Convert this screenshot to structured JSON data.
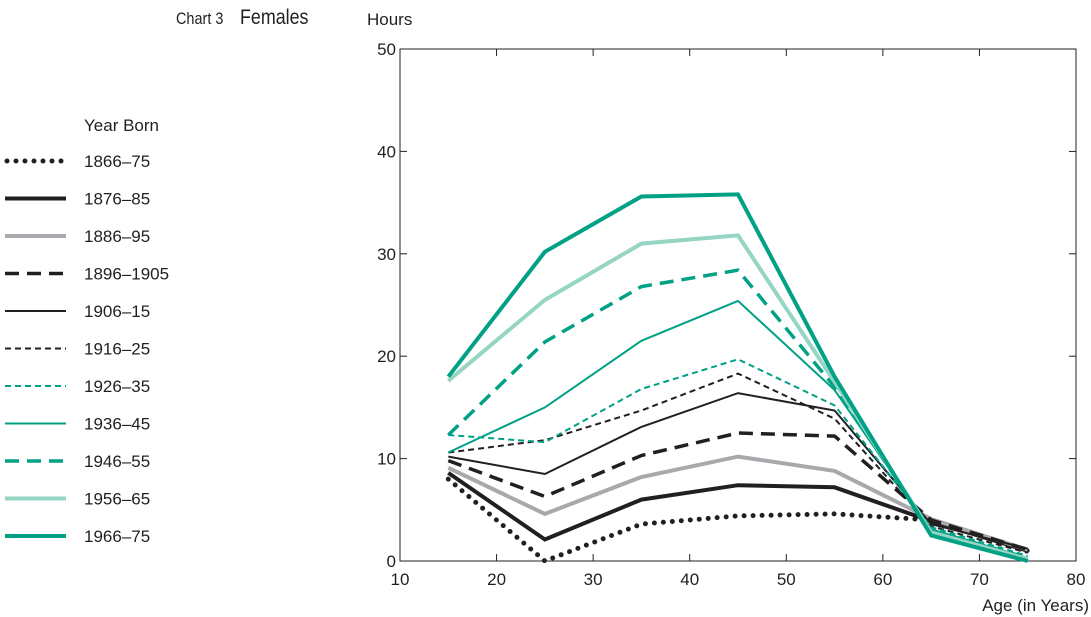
{
  "chart_label": "Chart 3",
  "chart_title": "Females",
  "chart_data": {
    "type": "line",
    "title": "Females",
    "xlabel": "Age (in Years)",
    "ylabel": "Hours",
    "xlim": [
      10,
      80
    ],
    "ylim": [
      0,
      50
    ],
    "xticks": [
      10,
      20,
      30,
      40,
      50,
      60,
      70,
      80
    ],
    "yticks": [
      0,
      10,
      20,
      30,
      40,
      50
    ],
    "x": [
      15,
      25,
      35,
      45,
      55,
      65,
      75
    ],
    "legend_title": "Year Born",
    "legend_position": "left",
    "series": [
      {
        "name": "1866–75",
        "color": "#231f20",
        "style": "dotted",
        "values": [
          8.0,
          0.0,
          3.6,
          4.4,
          4.6,
          4.0,
          1.0
        ]
      },
      {
        "name": "1876–85",
        "color": "#231f20",
        "style": "solid-thick",
        "values": [
          8.6,
          2.1,
          6.0,
          7.4,
          7.2,
          3.9,
          1.0
        ]
      },
      {
        "name": "1886–95",
        "color": "#a7a9ac",
        "style": "solid-thick",
        "values": [
          9.1,
          4.6,
          8.2,
          10.2,
          8.8,
          4.1,
          1.1
        ]
      },
      {
        "name": "1896–1905",
        "color": "#231f20",
        "style": "dashed-thick",
        "values": [
          9.8,
          6.3,
          10.3,
          12.5,
          12.2,
          4.0,
          1.1
        ]
      },
      {
        "name": "1906–15",
        "color": "#231f20",
        "style": "solid",
        "values": [
          10.2,
          8.5,
          13.1,
          16.4,
          14.7,
          3.6,
          1.2
        ]
      },
      {
        "name": "1916–25",
        "color": "#231f20",
        "style": "dashed",
        "values": [
          10.6,
          11.8,
          14.7,
          18.3,
          13.9,
          3.4,
          0.8
        ]
      },
      {
        "name": "1926–35",
        "color": "#00a185",
        "style": "dashed",
        "values": [
          12.3,
          11.6,
          16.8,
          19.7,
          15.2,
          3.3,
          0.5
        ]
      },
      {
        "name": "1936–45",
        "color": "#00a185",
        "style": "solid",
        "values": [
          10.6,
          15.0,
          21.5,
          25.4,
          16.7,
          3.1,
          0.3
        ]
      },
      {
        "name": "1946–55",
        "color": "#00a185",
        "style": "dashed-thick",
        "values": [
          12.3,
          21.4,
          26.8,
          28.4,
          17.0,
          3.0,
          0.3
        ]
      },
      {
        "name": "1956–65",
        "color": "#96d4c3",
        "style": "solid-thick",
        "values": [
          17.6,
          25.5,
          31.0,
          31.8,
          17.5,
          2.8,
          0.2
        ]
      },
      {
        "name": "1966–75",
        "color": "#00a185",
        "style": "solid-thick",
        "values": [
          18.0,
          30.2,
          35.6,
          35.8,
          18.0,
          2.5,
          0.0
        ]
      }
    ]
  }
}
